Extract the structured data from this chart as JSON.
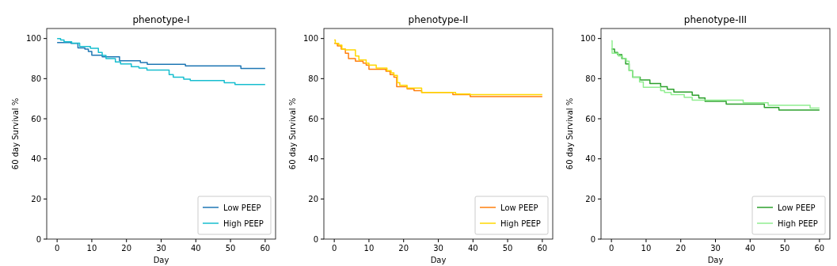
{
  "chart_data": [
    {
      "type": "step",
      "title": "phenotype-I",
      "xlabel": "Day",
      "ylabel": "60 day Survival %",
      "xlim": [
        -3,
        63
      ],
      "ylim": [
        0,
        105
      ],
      "xticks": [
        0,
        10,
        20,
        30,
        40,
        50,
        60
      ],
      "yticks": [
        0,
        20,
        40,
        60,
        80,
        100
      ],
      "legend": "bottom right",
      "grid": false,
      "series": [
        {
          "name": "Low PEEP",
          "color": "#1f77b4",
          "x": [
            0,
            4,
            6,
            8,
            9,
            10,
            13,
            18,
            24,
            26,
            37,
            53,
            60
          ],
          "values": [
            98,
            97.6,
            95.3,
            94.7,
            93.6,
            91.7,
            90.9,
            88.9,
            88,
            87.1,
            86.3,
            85.1,
            85.1
          ]
        },
        {
          "name": "High PEEP",
          "color": "#17becf",
          "x": [
            0,
            1,
            2,
            4.2,
            6.5,
            9.6,
            11.9,
            13,
            14.1,
            16.8,
            18.3,
            21.4,
            23.6,
            25.9,
            32.3,
            33.5,
            36.5,
            38.4,
            48.2,
            51.3,
            60
          ],
          "values": [
            100,
            99.3,
            98.4,
            97.7,
            96,
            95.1,
            93.1,
            91.6,
            90,
            88.3,
            87.3,
            86,
            85.3,
            84.3,
            82,
            80.7,
            79.7,
            79,
            78,
            77.1,
            77.1
          ]
        }
      ]
    },
    {
      "type": "step",
      "title": "phenotype-II",
      "xlabel": "Day",
      "ylabel": "60 day Survival %",
      "xlim": [
        -3,
        63
      ],
      "ylim": [
        0,
        105
      ],
      "xticks": [
        0,
        10,
        20,
        30,
        40,
        50,
        60
      ],
      "yticks": [
        0,
        20,
        40,
        60,
        80,
        100
      ],
      "legend": "bottom right",
      "grid": false,
      "series": [
        {
          "name": "Low PEEP",
          "color": "#ff7f0e",
          "x": [
            0,
            0.9,
            2,
            3.2,
            4.1,
            6.1,
            8.3,
            9.2,
            10,
            14.9,
            16.1,
            17.2,
            18,
            21,
            23,
            25.2,
            34.2,
            39.2,
            60
          ],
          "values": [
            97.6,
            96.3,
            94.7,
            92.7,
            90,
            88.7,
            87.7,
            86.7,
            84.7,
            83.7,
            82,
            80.7,
            76,
            74.9,
            74,
            73.1,
            72,
            71.1,
            71.1
          ]
        },
        {
          "name": "High PEEP",
          "color": "#ffd700",
          "x": [
            0,
            0.3,
            1.3,
            2.2,
            3.2,
            6.1,
            7.1,
            9.2,
            10,
            12.1,
            15.2,
            16.4,
            17.2,
            18.2,
            18.9,
            21,
            25.2,
            35,
            39.2,
            60
          ],
          "values": [
            99.3,
            97.6,
            96.7,
            94.7,
            94.3,
            91.3,
            89.3,
            87.7,
            86.7,
            85.3,
            84,
            82.9,
            81.6,
            78,
            76.7,
            75.3,
            73.1,
            72.3,
            72,
            72
          ]
        }
      ]
    },
    {
      "type": "step",
      "title": "phenotype-III",
      "xlabel": "Day",
      "ylabel": "60 day Survival %",
      "xlim": [
        -3,
        63
      ],
      "ylim": [
        0,
        105
      ],
      "xticks": [
        0,
        10,
        20,
        30,
        40,
        50,
        60
      ],
      "yticks": [
        0,
        20,
        40,
        60,
        80,
        100
      ],
      "legend": "bottom right",
      "grid": false,
      "series": [
        {
          "name": "Low PEEP",
          "color": "#2ca02c",
          "x": [
            0,
            0.9,
            1.8,
            3,
            4.1,
            5.1,
            6.1,
            8.3,
            11.1,
            14.2,
            16.1,
            18,
            23.3,
            25.2,
            27,
            33.1,
            44.1,
            48.3,
            60
          ],
          "values": [
            94.7,
            93.1,
            92,
            90,
            87.3,
            84,
            80.7,
            79.3,
            77.6,
            76,
            74.7,
            73.3,
            71.7,
            70.4,
            68.7,
            67.3,
            65.6,
            64.3,
            64.3
          ]
        },
        {
          "name": "High PEEP",
          "color": "#90ee90",
          "x": [
            0,
            0.2,
            2,
            3.2,
            4.3,
            5.1,
            6.1,
            8.1,
            9.2,
            14.2,
            15.3,
            17.2,
            21,
            23.3,
            38,
            45.2,
            57.3,
            60
          ],
          "values": [
            98.9,
            92.7,
            91.3,
            90,
            88.7,
            84,
            80.7,
            78.4,
            75.7,
            74,
            73.1,
            72,
            70.7,
            69.3,
            68,
            66.7,
            65.3,
            65.3
          ]
        }
      ]
    }
  ]
}
